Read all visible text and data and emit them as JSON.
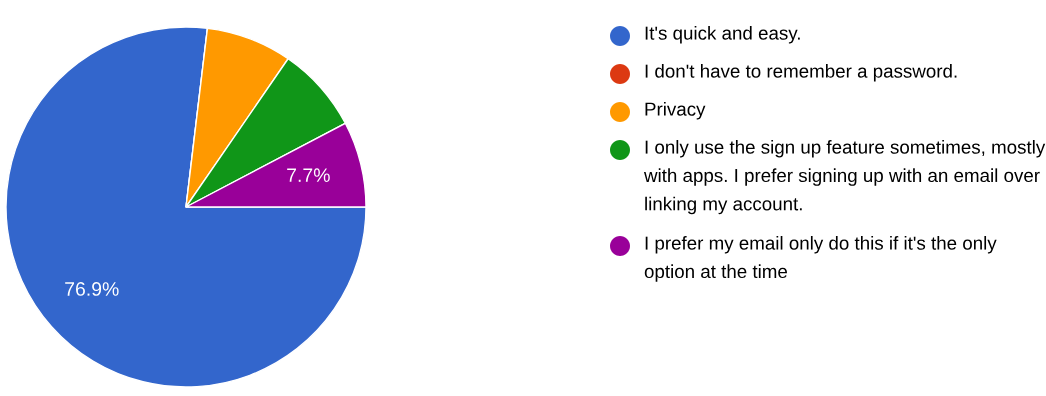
{
  "chart_data": {
    "type": "pie",
    "categories": [
      "It's quick and easy.",
      "I don't have to remember a password.",
      "Privacy",
      "I only use the sign up feature sometimes, mostly with apps. I prefer signing up with an email over linking my account.",
      "I prefer my email only do this if it's the only option at the time"
    ],
    "values": [
      76.9,
      0,
      7.7,
      7.7,
      7.7
    ],
    "colors": [
      "#3366cc",
      "#dc3912",
      "#ff9900",
      "#109618",
      "#990099"
    ],
    "value_labels": [
      "76.9%",
      null,
      null,
      null,
      "7.7%"
    ],
    "legend": "right"
  }
}
